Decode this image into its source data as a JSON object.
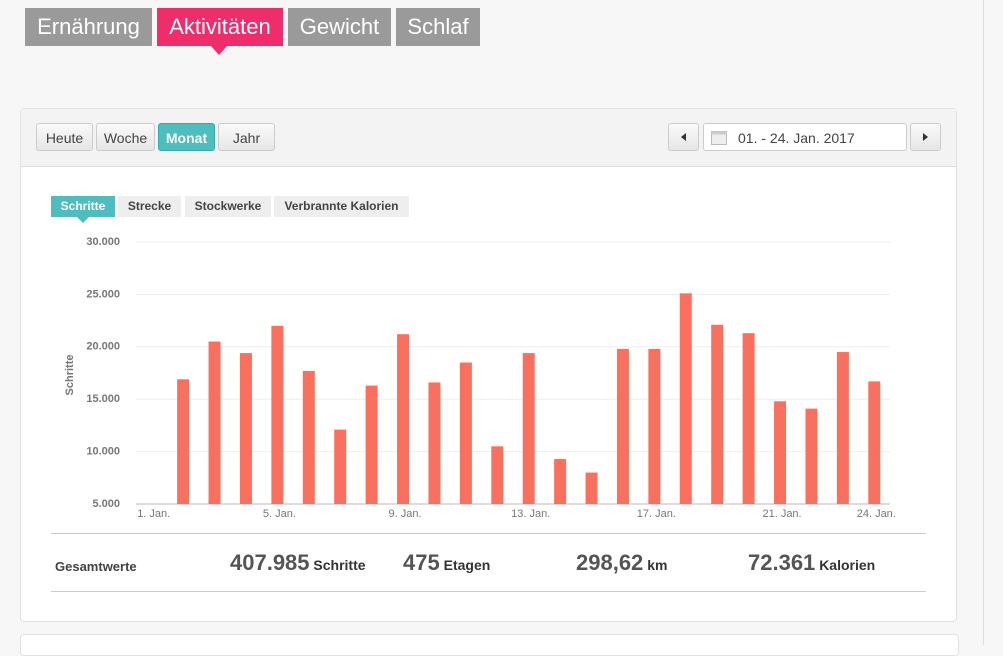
{
  "tabs": [
    "Ernährung",
    "Aktivitäten",
    "Gewicht",
    "Schlaf"
  ],
  "period_buttons": [
    "Heute",
    "Woche",
    "Monat",
    "Jahr"
  ],
  "date_range": "01. - 24. Jan. 2017",
  "metric_tabs": [
    "Schritte",
    "Strecke",
    "Stockwerke",
    "Verbrannte Kalorien"
  ],
  "totals": {
    "label": "Gesamtwerte",
    "items": [
      {
        "value": "407.985",
        "unit": "Schritte"
      },
      {
        "value": "475",
        "unit": "Etagen"
      },
      {
        "value": "298,62",
        "unit": "km"
      },
      {
        "value": "72.361",
        "unit": "Kalorien"
      }
    ]
  },
  "chart_data": {
    "type": "bar",
    "ylabel": "Schritte",
    "color": "#f9705f",
    "grid": true,
    "categories": [
      "1. Jan.",
      null,
      null,
      null,
      "5. Jan.",
      null,
      null,
      null,
      "9. Jan.",
      null,
      null,
      null,
      "13. Jan.",
      null,
      null,
      null,
      "17. Jan.",
      null,
      null,
      null,
      "21. Jan.",
      null,
      null,
      "24. Jan."
    ],
    "values": [
      null,
      16900,
      20500,
      19400,
      22000,
      17700,
      12100,
      16300,
      21200,
      16600,
      18500,
      10500,
      19400,
      9300,
      8000,
      19800,
      19800,
      25100,
      22100,
      21300,
      14800,
      14100,
      19500,
      16700
    ],
    "ylim": [
      5000,
      30000
    ],
    "yticks": [
      {
        "value": 5000,
        "label": "5.000"
      },
      {
        "value": 10000,
        "label": "10.000"
      },
      {
        "value": 15000,
        "label": "15.000"
      },
      {
        "value": 20000,
        "label": "20.000"
      },
      {
        "value": 25000,
        "label": "25.000"
      },
      {
        "value": 30000,
        "label": "30.000"
      }
    ]
  }
}
